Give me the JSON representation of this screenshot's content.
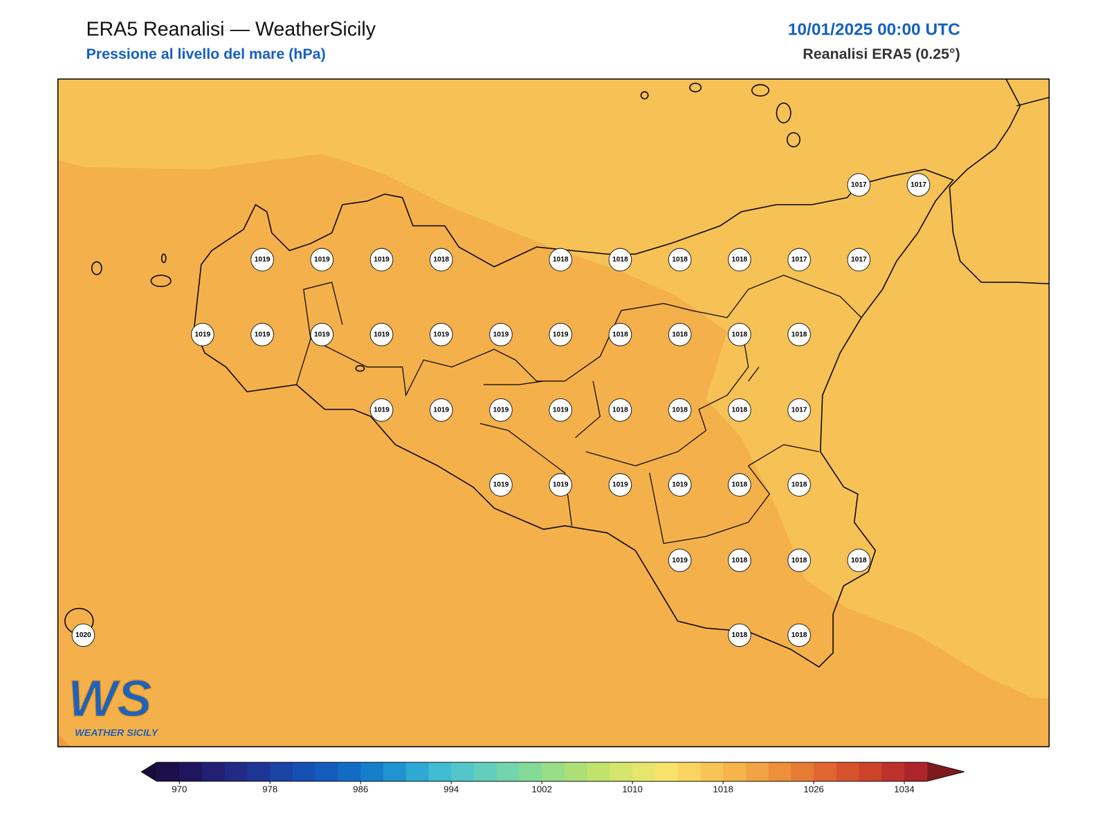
{
  "header": {
    "title": "ERA5 Reanalisi — WeatherSicily",
    "subtitle": "Pressione al livello del mare (hPa)",
    "datetime": "10/01/2025 00:00 UTC",
    "source": "Reanalisi ERA5 (0.25°)"
  },
  "map": {
    "station_rows": [
      {
        "values": [
          1017,
          1017
        ]
      },
      {
        "values": [
          1019,
          1019,
          1019,
          1018,
          1018,
          1018,
          1018,
          1018,
          1017,
          1017
        ]
      },
      {
        "values": [
          1019,
          1019,
          1019,
          1019,
          1019,
          1019,
          1019,
          1018,
          1018,
          1018,
          1018
        ]
      },
      {
        "values": [
          1019,
          1019,
          1019,
          1019,
          1018,
          1018,
          1018,
          1017
        ]
      },
      {
        "values": [
          1019,
          1019,
          1019,
          1019,
          1018,
          1018
        ]
      },
      {
        "values": [
          1019,
          1018,
          1018,
          1018
        ]
      },
      {
        "values": [
          1020,
          1018,
          1018
        ]
      }
    ]
  },
  "colorbar": {
    "range": [
      968,
      1036
    ],
    "ticks": [
      970,
      978,
      986,
      994,
      1002,
      1010,
      1018,
      1026,
      1034
    ],
    "colors": [
      "#1c0f4a",
      "#201660",
      "#221f74",
      "#212a86",
      "#1d3696",
      "#1a44a6",
      "#1650b2",
      "#135cbd",
      "#116cc6",
      "#167fcc",
      "#2193d0",
      "#2fa8d4",
      "#3fbbd2",
      "#52c6c8",
      "#62cebb",
      "#72d5ab",
      "#85da98",
      "#99de86",
      "#addf76",
      "#c1e36c",
      "#d4e56b",
      "#e6e66c",
      "#f8e26a",
      "#f9d462",
      "#f7c556",
      "#f5b54c",
      "#f2a343",
      "#ed9039",
      "#e67b34",
      "#df6630",
      "#d7532c",
      "#cc432a",
      "#bd322a",
      "#ad252a"
    ],
    "under_color": "#180c3a",
    "over_color": "#7e1a1e"
  },
  "logo": {
    "mark": "WS",
    "name": "WEATHER SICILY"
  }
}
